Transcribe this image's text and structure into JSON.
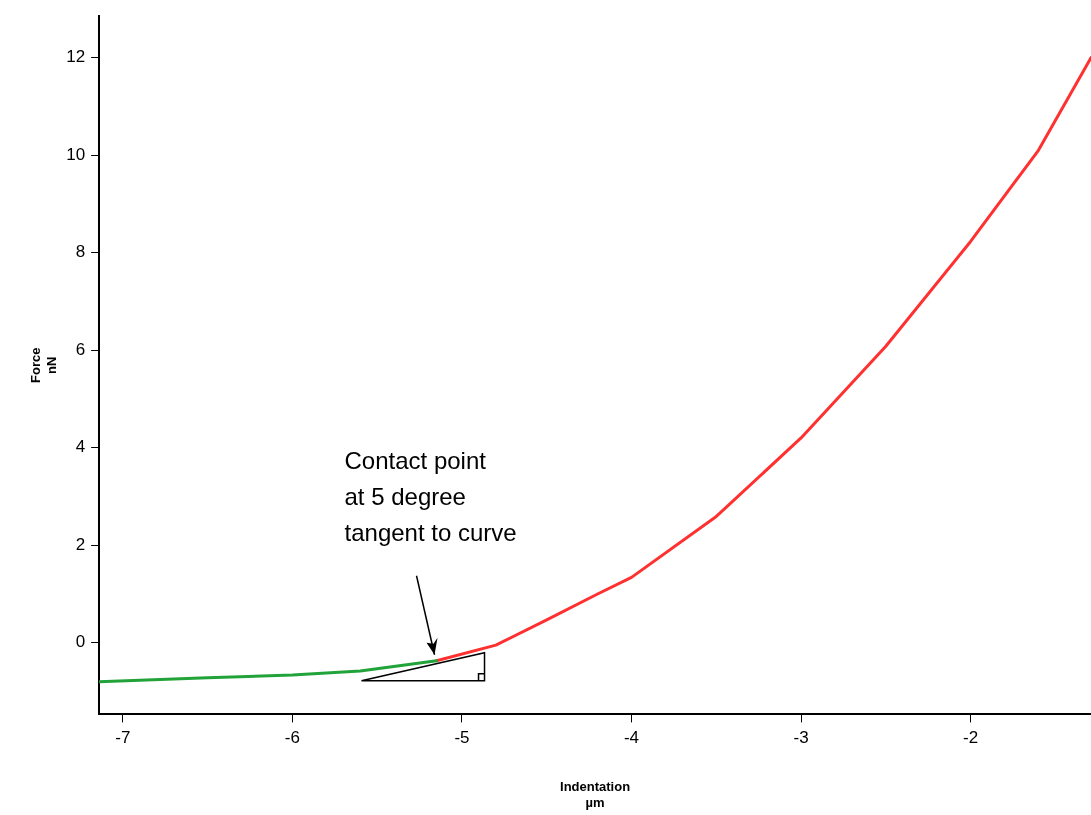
{
  "chart_data": {
    "type": "line",
    "xlabel": "Indentation\nµm",
    "ylabel": "Force\nnN",
    "xlim": [
      -7.14,
      -1.29
    ],
    "xticks": [
      -7,
      -6,
      -5,
      -4,
      -3,
      -2
    ],
    "ylim": [
      -1.47,
      12.85
    ],
    "yticks": [
      0,
      2,
      4,
      6,
      8,
      10,
      12
    ],
    "grid": false,
    "legend": false,
    "marker": "none",
    "line_style": "solid",
    "series": [
      {
        "color": "#ff3030",
        "x": [
          -5.15,
          -4.8,
          -4.5,
          -4.2,
          -4,
          -3.5,
          -3,
          -2.5,
          -2,
          -1.6,
          -1.29
        ],
        "values": [
          -0.37,
          -0.05,
          0.47,
          1.0,
          1.34,
          2.59,
          4.2,
          6.08,
          8.23,
          10.1,
          12.0
        ]
      },
      {
        "color": "#22a33a",
        "x": [
          -7.14,
          -6.5,
          -6,
          -5.6,
          -5.15
        ],
        "values": [
          -0.8,
          -0.72,
          -0.66,
          -0.58,
          -0.37
        ]
      }
    ],
    "annotations": [
      {
        "text": "Contact point\nat 5 degree\ntangent to curve",
        "x": -5.15,
        "y": -0.37
      }
    ]
  }
}
